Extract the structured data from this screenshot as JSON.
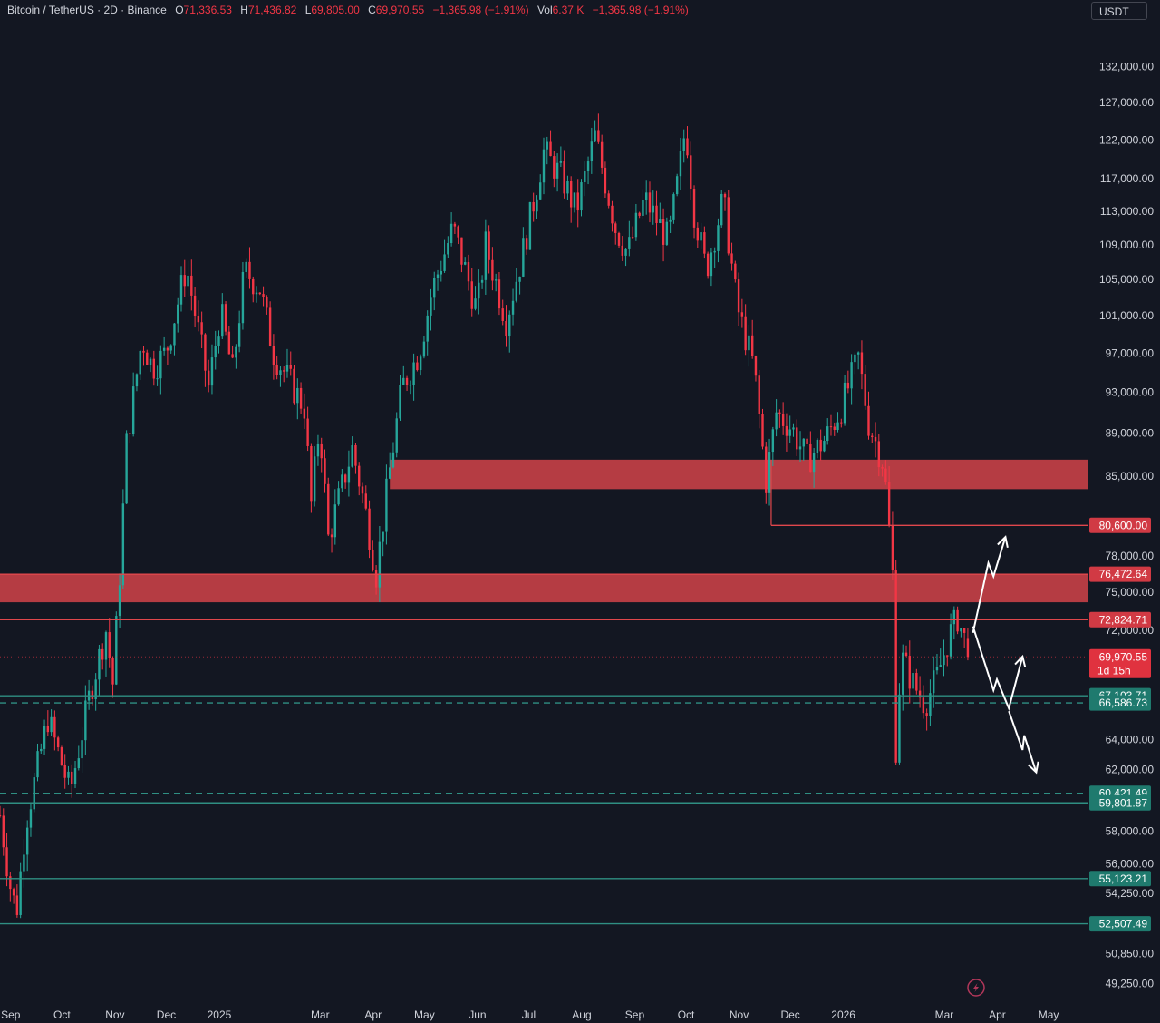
{
  "header": {
    "symbol": "Bitcoin / TetherUS · 2D · Binance",
    "o_label": "O",
    "o_value": "71,336.53",
    "h_label": "H",
    "h_value": "71,436.82",
    "l_label": "L",
    "l_value": "69,805.00",
    "c_label": "C",
    "c_value": "69,970.55",
    "change": "−1,365.98 (−1.91%)",
    "vol_label": "Vol",
    "vol_value": "6.37 K",
    "vol_change": "−1,365.98 (−1.91%)"
  },
  "currency_button": "USDT",
  "colors": {
    "background": "#131722",
    "up": "#26a69a",
    "down": "#f23645",
    "zone": "#d9444a",
    "support": "#2f8f83",
    "resistance": "#e0474c",
    "arrow": "#ffffff"
  },
  "chart_data": {
    "type": "candlestick",
    "symbol": "BTCUSDT",
    "timeframe": "2D",
    "y_scale": "log",
    "ylim": [
      48500,
      138000
    ],
    "y_ticks": [
      {
        "value": 132000,
        "label": "132,000.00"
      },
      {
        "value": 127000,
        "label": "127,000.00"
      },
      {
        "value": 122000,
        "label": "122,000.00"
      },
      {
        "value": 117000,
        "label": "117,000.00"
      },
      {
        "value": 113000,
        "label": "113,000.00"
      },
      {
        "value": 109000,
        "label": "109,000.00"
      },
      {
        "value": 105000,
        "label": "105,000.00"
      },
      {
        "value": 101000,
        "label": "101,000.00"
      },
      {
        "value": 97000,
        "label": "97,000.00"
      },
      {
        "value": 93000,
        "label": "93,000.00"
      },
      {
        "value": 89000,
        "label": "89,000.00"
      },
      {
        "value": 85000,
        "label": "85,000.00"
      },
      {
        "value": 78000,
        "label": "78,000.00"
      },
      {
        "value": 75000,
        "label": "75,000.00"
      },
      {
        "value": 72000,
        "label": "72,000.00"
      },
      {
        "value": 64000,
        "label": "64,000.00"
      },
      {
        "value": 62000,
        "label": "62,000.00"
      },
      {
        "value": 58000,
        "label": "58,000.00"
      },
      {
        "value": 56000,
        "label": "56,000.00"
      },
      {
        "value": 54250,
        "label": "54,250.00"
      },
      {
        "value": 50850,
        "label": "50,850.00"
      },
      {
        "value": 49250,
        "label": "49,250.00"
      }
    ],
    "x_ticks": [
      "2024-09-01",
      "2024-10-01",
      "2024-11-01",
      "2024-12-01",
      "2025-01-01",
      "2025-03-01",
      "2025-04-01",
      "2025-05-01",
      "2025-06-01",
      "2025-07-01",
      "2025-08-01",
      "2025-09-01",
      "2025-10-01",
      "2025-11-01",
      "2025-12-01",
      "2026-01-01",
      "2026-03-01",
      "2026-04-01",
      "2026-05-01"
    ],
    "x_tick_labels": [
      "Sep",
      "Oct",
      "Nov",
      "Dec",
      "2025",
      "Mar",
      "Apr",
      "May",
      "Jun",
      "Jul",
      "Aug",
      "Sep",
      "Oct",
      "Nov",
      "Dec",
      "2026",
      "Mar",
      "Apr",
      "May"
    ],
    "x_range": [
      "2024-08-30",
      "2026-05-28"
    ],
    "close_path": [
      [
        "2024-08-30",
        59000
      ],
      [
        "2024-09-06",
        54000
      ],
      [
        "2024-09-09",
        53500
      ],
      [
        "2024-09-14",
        58500
      ],
      [
        "2024-09-27",
        65500
      ],
      [
        "2024-10-10",
        60500
      ],
      [
        "2024-10-22",
        67500
      ],
      [
        "2024-10-31",
        72000
      ],
      [
        "2024-11-04",
        68000
      ],
      [
        "2024-11-08",
        76500
      ],
      [
        "2024-11-12",
        88000
      ],
      [
        "2024-11-21",
        98500
      ],
      [
        "2024-11-27",
        95500
      ],
      [
        "2024-12-05",
        97000
      ],
      [
        "2024-12-17",
        106500
      ],
      [
        "2024-12-30",
        93500
      ],
      [
        "2025-01-06",
        101500
      ],
      [
        "2025-01-13",
        95000
      ],
      [
        "2025-01-20",
        106000
      ],
      [
        "2025-01-29",
        104000
      ],
      [
        "2025-02-06",
        97000
      ],
      [
        "2025-02-24",
        91500
      ],
      [
        "2025-02-28",
        82500
      ],
      [
        "2025-03-05",
        90000
      ],
      [
        "2025-03-10",
        79500
      ],
      [
        "2025-03-24",
        87500
      ],
      [
        "2025-03-31",
        82500
      ],
      [
        "2025-04-07",
        76500
      ],
      [
        "2025-04-14",
        84500
      ],
      [
        "2025-04-22",
        93500
      ],
      [
        "2025-05-02",
        97000
      ],
      [
        "2025-05-10",
        104000
      ],
      [
        "2025-05-22",
        111000
      ],
      [
        "2025-06-05",
        101500
      ],
      [
        "2025-06-10",
        109000
      ],
      [
        "2025-06-22",
        100500
      ],
      [
        "2025-07-01",
        107500
      ],
      [
        "2025-07-10",
        116000
      ],
      [
        "2025-07-14",
        120500
      ],
      [
        "2025-07-25",
        117000
      ],
      [
        "2025-08-02",
        113000
      ],
      [
        "2025-08-13",
        122500
      ],
      [
        "2025-08-25",
        111000
      ],
      [
        "2025-09-01",
        108000
      ],
      [
        "2025-09-11",
        114500
      ],
      [
        "2025-09-25",
        109500
      ],
      [
        "2025-10-01",
        117500
      ],
      [
        "2025-10-05",
        124000
      ],
      [
        "2025-10-10",
        113000
      ],
      [
        "2025-10-17",
        106000
      ],
      [
        "2025-10-27",
        114500
      ],
      [
        "2025-11-04",
        102000
      ],
      [
        "2025-11-14",
        95500
      ],
      [
        "2025-11-21",
        84500
      ],
      [
        "2025-11-27",
        91000
      ],
      [
        "2025-12-06",
        89500
      ],
      [
        "2025-12-15",
        86500
      ],
      [
        "2025-12-26",
        88500
      ],
      [
        "2026-01-04",
        91500
      ],
      [
        "2026-01-14",
        96500
      ],
      [
        "2026-01-20",
        90000
      ],
      [
        "2026-01-29",
        86000
      ],
      [
        "2026-02-03",
        76500
      ],
      [
        "2026-02-05",
        63500
      ],
      [
        "2026-02-08",
        70000
      ],
      [
        "2026-02-15",
        68000
      ],
      [
        "2026-02-22",
        66500
      ],
      [
        "2026-03-01",
        68500
      ],
      [
        "2026-03-08",
        71500
      ],
      [
        "2026-03-13",
        73000
      ],
      [
        "2026-03-17",
        71300
      ],
      [
        "2026-03-19",
        69970.55
      ]
    ],
    "last_bar": {
      "open": 71336.53,
      "high": 71436.82,
      "low": 69805.0,
      "close": 69970.55,
      "volume": "6.37 K"
    },
    "zones": [
      {
        "type": "resistance",
        "from": 83800,
        "to": 86500,
        "start": "2025-04-15"
      },
      {
        "type": "resistance",
        "from": 74200,
        "to": 76472.64,
        "start": "2024-08-30"
      }
    ],
    "levels": [
      {
        "price": 80600,
        "label": "80,600.00",
        "kind": "resistance",
        "style": "solid",
        "start": "2025-11-24"
      },
      {
        "price": 76472.64,
        "label": "76,472.64",
        "kind": "resistance",
        "style": "solid"
      },
      {
        "price": 72824.71,
        "label": "72,824.71",
        "kind": "resistance",
        "style": "solid"
      },
      {
        "price": 67103.71,
        "label": "67,103.71",
        "kind": "support",
        "style": "solid"
      },
      {
        "price": 66586.73,
        "label": "66,586.73",
        "kind": "support",
        "style": "dashed"
      },
      {
        "price": 60421.49,
        "label": "60,421.49",
        "kind": "support",
        "style": "dashed"
      },
      {
        "price": 59801.87,
        "label": "59,801.87",
        "kind": "support",
        "style": "solid"
      },
      {
        "price": 55123.21,
        "label": "55,123.21",
        "kind": "support",
        "style": "solid"
      },
      {
        "price": 52507.49,
        "label": "52,507.49",
        "kind": "support",
        "style": "solid"
      }
    ],
    "current_price": {
      "price": 69970.55,
      "label": "69,970.55",
      "countdown": "1d 15h"
    },
    "projection_paths": [
      [
        [
          "2026-03-22",
          71800
        ],
        [
          "2026-03-31",
          77400
        ],
        [
          "2026-04-03",
          76300
        ],
        [
          "2026-04-10",
          79600
        ]
      ],
      [
        [
          "2026-03-22",
          72300
        ],
        [
          "2026-04-03",
          67500
        ],
        [
          "2026-04-05",
          68300
        ],
        [
          "2026-04-12",
          66200
        ],
        [
          "2026-04-20",
          70000
        ]
      ],
      [
        [
          "2026-04-12",
          66000
        ],
        [
          "2026-04-20",
          63300
        ],
        [
          "2026-04-21",
          64300
        ],
        [
          "2026-04-28",
          61800
        ]
      ]
    ]
  }
}
